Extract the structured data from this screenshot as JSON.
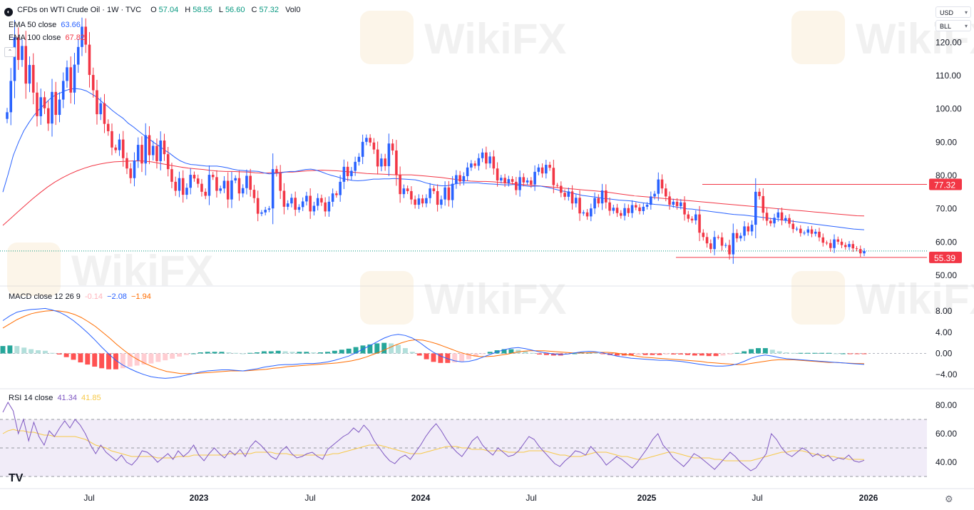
{
  "header": {
    "symbol": "CFDs on WTI Crude Oil · 1W · TVC",
    "ohlc": [
      {
        "label": "O",
        "value": "57.04"
      },
      {
        "label": "H",
        "value": "58.55"
      },
      {
        "label": "L",
        "value": "56.60"
      },
      {
        "label": "C",
        "value": "57.32"
      }
    ],
    "vol": "Vol0",
    "indicators": [
      {
        "label": "EMA 50 close",
        "value": "63.66",
        "color": "#2962ff"
      },
      {
        "label": "EMA 100 close",
        "value": "67.82",
        "color": "#f23645"
      }
    ]
  },
  "currency_selector": "USD",
  "unit_selector": "BLL",
  "macd": {
    "label": "MACD close 12 26 9",
    "values": [
      {
        "value": "-0.14",
        "color": "#ffb3bb"
      },
      {
        "value": "−2.08",
        "color": "#2962ff"
      },
      {
        "value": "−1.94",
        "color": "#ff6d00"
      }
    ]
  },
  "rsi": {
    "label": "RSI 14 close",
    "values": [
      {
        "value": "41.34",
        "color": "#7e57c2"
      },
      {
        "value": "41.85",
        "color": "#f7c948"
      }
    ]
  },
  "watermark": "WikiFX",
  "chart_data": {
    "type": "candlestick",
    "title": "CFDs on WTI Crude Oil · 1W · TVC",
    "price_axis": {
      "ticks": [
        "120.00",
        "110.00",
        "100.00",
        "90.00",
        "80.00",
        "70.00",
        "60.00",
        "50.00"
      ]
    },
    "time_axis": {
      "ticks": [
        "Jul",
        "2023",
        "Jul",
        "2024",
        "Jul",
        "2025",
        "Jul",
        "2026"
      ]
    },
    "price_labels": [
      {
        "value": "77.32",
        "color": "#f23645"
      },
      {
        "value": "55.39",
        "color": "#f23645"
      }
    ],
    "horizontal_lines": [
      77.32,
      55.39
    ],
    "last_close": 57.32,
    "close_series": [
      99.0,
      108.4,
      121.5,
      114.7,
      118.9,
      107.6,
      113.2,
      104.9,
      97.8,
      103.5,
      100.2,
      95.6,
      105.1,
      98.2,
      102.8,
      108.4,
      112.5,
      104.9,
      113.3,
      118.6,
      124.7,
      119.3,
      110.2,
      105.6,
      98.4,
      101.7,
      95.5,
      93.3,
      88.4,
      87.6,
      90.8,
      85.2,
      82.1,
      79.2,
      84.5,
      89.2,
      83.6,
      92.1,
      86.1,
      88.9,
      84.3,
      90.5,
      86.4,
      81.9,
      78.1,
      75.4,
      79.2,
      74.2,
      76.3,
      80.2,
      79.1,
      77.5,
      75.1,
      73.9,
      80.2,
      79.5,
      75.4,
      76.1,
      78.4,
      72.8,
      78.5,
      79.2,
      74.6,
      76.2,
      79.9,
      75.7,
      73.2,
      68.5,
      68.9,
      69.7,
      70.1,
      81.9,
      80.7,
      75.4,
      70.6,
      71.6,
      73.3,
      69.7,
      70.5,
      72.2,
      73.9,
      69.2,
      70.9,
      73.2,
      71.9,
      69.2,
      72.1,
      74.6,
      74.1,
      78.1,
      82.6,
      79.8,
      81.4,
      84.1,
      85.6,
      90.1,
      91.3,
      89.9,
      87.8,
      82.7,
      85.1,
      82.8,
      89.6,
      87.5,
      80.1,
      74.4,
      76.1,
      75.3,
      72.8,
      71.2,
      73.1,
      71.6,
      73.2,
      76.1,
      75.3,
      71.2,
      72.8,
      76.4,
      72.6,
      77.5,
      80.1,
      78.2,
      79.8,
      82.4,
      83.6,
      82.9,
      85.2,
      86.9,
      83.6,
      85.7,
      82.1,
      78.5,
      79.3,
      77.7,
      78.9,
      78.1,
      75.6,
      79.5,
      77.9,
      78.5,
      77.3,
      81.1,
      82.4,
      80.6,
      83.2,
      82.3,
      77.1,
      76.9,
      74.8,
      73.6,
      75.2,
      71.6,
      73.3,
      68.6,
      68.9,
      67.7,
      70.1,
      73.2,
      71.6,
      75.5,
      71.9,
      69.4,
      70.3,
      68.7,
      67.9,
      70.2,
      68.7,
      71.1,
      70.4,
      69.3,
      70.6,
      71.2,
      73.7,
      74.5,
      78.8,
      76.1,
      73.7,
      71.2,
      72.1,
      70.8,
      71.9,
      68.3,
      67.0,
      66.5,
      68.3,
      62.8,
      61.5,
      59.6,
      57.9,
      61.5,
      61.4,
      58.9,
      59.1,
      56.3,
      62.7,
      61.1,
      61.9,
      64.7,
      63.2,
      65.2,
      75.1,
      73.8,
      68.8,
      66.4,
      65.6,
      67.3,
      68.9,
      66.5,
      67.2,
      65.5,
      63.9,
      64.0,
      62.7,
      62.8,
      63.8,
      62.5,
      63.1,
      61.4,
      59.8,
      59.7,
      58.2,
      60.8,
      60.1,
      59.1,
      58.5,
      59.4,
      58.1,
      57.9,
      56.6,
      57.32
    ],
    "ema50_series": [
      75.0,
      80.3,
      86.0,
      90.0,
      93.4,
      95.9,
      98.1,
      99.9,
      101.4,
      103.0,
      104.1,
      104.8,
      105.5,
      106.0,
      106.1,
      105.9,
      105.4,
      104.5,
      103.5,
      102.1,
      100.9,
      99.5,
      98.3,
      97.2,
      95.7,
      94.6,
      93.3,
      92.1,
      91.0,
      89.8,
      88.8,
      87.6,
      86.6,
      85.4,
      84.4,
      83.7,
      83.3,
      83.2,
      83.0,
      82.8,
      82.8,
      82.8,
      82.6,
      82.3,
      81.9,
      81.6,
      81.5,
      81.3,
      81.3,
      81.2,
      80.8,
      80.5,
      80.6,
      80.7,
      81.0,
      81.2,
      81.2,
      81.5,
      81.8,
      81.9,
      81.6,
      81.1,
      80.5,
      80.0,
      79.6,
      79.1,
      78.8,
      78.5,
      78.4,
      78.5,
      78.7,
      78.9,
      78.9,
      79.0,
      79.0,
      79.1,
      79.0,
      78.9,
      78.8,
      78.7,
      78.3,
      77.8,
      77.4,
      77.1,
      76.9,
      76.9,
      77.2,
      77.6,
      77.8,
      77.8,
      77.8,
      77.8,
      77.6,
      77.5,
      77.4,
      77.3,
      77.2,
      77.2,
      77.3,
      77.0,
      76.9,
      76.7,
      76.8,
      76.8,
      76.5,
      76.2,
      75.8,
      75.4,
      75.1,
      74.7,
      74.4,
      74.0,
      73.8,
      73.6,
      73.4,
      73.1,
      73.0,
      72.8,
      72.6,
      72.5,
      72.4,
      72.2,
      71.9,
      71.7,
      71.5,
      71.3,
      71.2,
      71.0,
      70.8,
      70.5,
      70.3,
      70.0,
      69.9,
      69.7,
      69.5,
      69.3,
      69.1,
      68.9,
      68.7,
      68.5,
      68.3,
      68.2,
      68.1,
      67.9,
      67.7,
      67.5,
      67.3,
      67.1,
      66.9,
      66.7,
      66.5,
      66.3,
      66.1,
      65.9,
      65.7,
      65.5,
      65.3,
      65.1,
      64.9,
      64.7,
      64.5,
      64.3,
      64.1,
      63.9,
      63.8,
      63.7
    ],
    "ema100_series": [
      65.0,
      67.0,
      69.0,
      71.0,
      73.0,
      74.8,
      76.5,
      78.0,
      79.3,
      80.4,
      81.4,
      82.2,
      82.9,
      83.4,
      83.8,
      84.1,
      84.2,
      84.3,
      84.4,
      84.3,
      84.1,
      83.7,
      83.3,
      82.9,
      82.5,
      82.2,
      82.0,
      81.8,
      81.5,
      81.3,
      81.2,
      81.2,
      81.1,
      81.0,
      80.8,
      80.7,
      80.8,
      80.9,
      81.0,
      81.0,
      81.2,
      81.4,
      81.5,
      81.6,
      81.5,
      81.4,
      81.2,
      81.0,
      80.8,
      80.6,
      80.5,
      80.4,
      80.3,
      80.2,
      80.2,
      80.2,
      80.0,
      79.8,
      79.6,
      79.4,
      79.1,
      78.8,
      78.5,
      78.3,
      78.2,
      78.2,
      78.1,
      77.9,
      77.7,
      77.5,
      77.3,
      77.1,
      76.9,
      76.7,
      76.5,
      76.3,
      76.1,
      75.9,
      75.7,
      75.5,
      75.3,
      75.1,
      74.8,
      74.5,
      74.2,
      73.9,
      73.7,
      73.5,
      73.3,
      73.1,
      72.9,
      72.7,
      72.5,
      72.3,
      72.1,
      71.9,
      71.7,
      71.5,
      71.3,
      71.1,
      70.9,
      70.7,
      70.5,
      70.3,
      70.1,
      69.9,
      69.7,
      69.5,
      69.3,
      69.1,
      68.9,
      68.7,
      68.5,
      68.3,
      68.1,
      67.9,
      67.82
    ],
    "macd_series": [
      6.2,
      7.1,
      7.8,
      8.1,
      8.3,
      8.4,
      8.5,
      8.2,
      7.8,
      7.1,
      6.2,
      5.1,
      3.9,
      2.6,
      1.2,
      -0.1,
      -1.3,
      -2.2,
      -2.9,
      -3.5,
      -4.0,
      -4.4,
      -4.6,
      -4.7,
      -4.6,
      -4.4,
      -4.1,
      -3.8,
      -3.5,
      -3.3,
      -3.2,
      -3.1,
      -3.1,
      -3.2,
      -3.3,
      -3.1,
      -2.9,
      -2.6,
      -2.4,
      -2.2,
      -2.1,
      -2.1,
      -2.0,
      -1.9,
      -1.9,
      -1.8,
      -1.6,
      -1.3,
      -0.9,
      -0.5,
      0.1,
      0.8,
      1.5,
      2.2,
      2.9,
      3.4,
      3.6,
      3.4,
      2.9,
      2.1,
      1.1,
      0.2,
      -0.5,
      -1.0,
      -1.4,
      -1.6,
      -1.5,
      -1.2,
      -0.7,
      -0.2,
      0.3,
      0.7,
      1.0,
      1.1,
      0.9,
      0.6,
      0.3,
      0.1,
      -0.1,
      -0.2,
      -0.1,
      0.1,
      0.3,
      0.4,
      0.3,
      0.1,
      -0.2,
      -0.5,
      -0.7,
      -0.9,
      -1.0,
      -1.1,
      -1.2,
      -1.3,
      -1.3,
      -1.4,
      -1.5,
      -1.7,
      -1.9,
      -2.1,
      -2.3,
      -2.4,
      -2.4,
      -2.3,
      -2.0,
      -1.5,
      -0.9,
      -0.5,
      -0.3,
      -0.5,
      -0.8,
      -1.0,
      -1.1,
      -1.2,
      -1.3,
      -1.4,
      -1.5,
      -1.6,
      -1.7,
      -1.8,
      -1.9,
      -2.0,
      -2.08
    ],
    "macd_signal_series": [
      4.8,
      5.6,
      6.4,
      7.0,
      7.5,
      7.8,
      8.0,
      8.1,
      8.0,
      7.8,
      7.4,
      6.8,
      6.0,
      5.1,
      4.0,
      2.9,
      1.7,
      0.6,
      -0.4,
      -1.2,
      -1.9,
      -2.5,
      -3.0,
      -3.4,
      -3.6,
      -3.8,
      -3.8,
      -3.8,
      -3.7,
      -3.6,
      -3.5,
      -3.4,
      -3.3,
      -3.3,
      -3.3,
      -3.2,
      -3.1,
      -3.0,
      -2.8,
      -2.7,
      -2.5,
      -2.4,
      -2.3,
      -2.2,
      -2.1,
      -2.0,
      -1.9,
      -1.8,
      -1.6,
      -1.4,
      -1.1,
      -0.7,
      -0.2,
      0.3,
      0.9,
      1.5,
      2.0,
      2.4,
      2.6,
      2.5,
      2.2,
      1.8,
      1.3,
      0.8,
      0.3,
      -0.1,
      -0.4,
      -0.6,
      -0.6,
      -0.5,
      -0.3,
      -0.1,
      0.2,
      0.4,
      0.5,
      0.5,
      0.5,
      0.4,
      0.3,
      0.2,
      0.1,
      0.1,
      0.1,
      0.2,
      0.2,
      0.2,
      0.1,
      -0.1,
      -0.3,
      -0.5,
      -0.7,
      -0.8,
      -0.9,
      -1.0,
      -1.1,
      -1.2,
      -1.3,
      -1.4,
      -1.5,
      -1.7,
      -1.8,
      -1.9,
      -2.0,
      -2.1,
      -2.1,
      -1.9,
      -1.7,
      -1.5,
      -1.3,
      -1.2,
      -1.2,
      -1.2,
      -1.3,
      -1.4,
      -1.5,
      -1.6,
      -1.7,
      -1.7,
      -1.8,
      -1.85,
      -1.9,
      -1.94
    ],
    "macd_histogram_series": [
      1.4,
      1.5,
      1.4,
      1.1,
      0.8,
      0.6,
      0.5,
      0.1,
      -0.2,
      -0.7,
      -1.2,
      -1.7,
      -2.1,
      -2.5,
      -2.8,
      -3.0,
      -3.0,
      -2.8,
      -2.5,
      -2.3,
      -2.1,
      -1.9,
      -1.6,
      -1.3,
      -1.0,
      -0.6,
      -0.3,
      0.0,
      0.2,
      0.3,
      0.3,
      0.3,
      0.2,
      0.1,
      0.0,
      0.1,
      0.2,
      0.4,
      0.4,
      0.5,
      0.4,
      0.3,
      0.3,
      0.3,
      0.2,
      0.2,
      0.3,
      0.5,
      0.7,
      0.9,
      1.2,
      1.5,
      1.7,
      1.9,
      2.0,
      1.9,
      1.6,
      1.0,
      0.3,
      -0.4,
      -1.1,
      -1.6,
      -1.8,
      -1.8,
      -1.7,
      -1.5,
      -1.1,
      -0.6,
      -0.1,
      0.3,
      0.6,
      0.8,
      0.8,
      0.7,
      0.4,
      0.1,
      -0.2,
      -0.3,
      -0.4,
      -0.4,
      -0.2,
      0.0,
      0.2,
      0.2,
      0.1,
      -0.1,
      -0.3,
      -0.4,
      -0.4,
      -0.4,
      -0.3,
      -0.3,
      -0.3,
      -0.3,
      -0.2,
      -0.2,
      -0.2,
      -0.3,
      -0.4,
      -0.4,
      -0.5,
      -0.5,
      -0.4,
      -0.2,
      0.1,
      0.4,
      0.8,
      1.0,
      1.0,
      0.7,
      0.4,
      0.2,
      0.1,
      0.1,
      0.1,
      0.1,
      0.1,
      0.1,
      0.0,
      0.0,
      -0.1,
      -0.1,
      -0.14
    ],
    "macd_axis": {
      "ticks": [
        "8.00",
        "4.00",
        "0.00",
        "−4.00"
      ]
    },
    "rsi_series": [
      75,
      82,
      76,
      60,
      70,
      55,
      68,
      58,
      52,
      62,
      58,
      64,
      69,
      64,
      70,
      66,
      60,
      52,
      46,
      52,
      47,
      44,
      41,
      45,
      40,
      38,
      42,
      48,
      47,
      44,
      40,
      43,
      46,
      42,
      48,
      44,
      47,
      52,
      45,
      41,
      46,
      50,
      46,
      43,
      48,
      45,
      49,
      44,
      51,
      55,
      52,
      48,
      44,
      42,
      48,
      51,
      46,
      43,
      44,
      46,
      47,
      44,
      42,
      49,
      52,
      55,
      58,
      60,
      64,
      61,
      66,
      62,
      55,
      50,
      45,
      41,
      39,
      43,
      45,
      42,
      47,
      52,
      58,
      63,
      67,
      62,
      56,
      51,
      47,
      44,
      49,
      55,
      58,
      52,
      48,
      45,
      50,
      47,
      44,
      45,
      48,
      53,
      58,
      56,
      51,
      47,
      43,
      39,
      37,
      41,
      44,
      48,
      47,
      45,
      51,
      47,
      43,
      38,
      41,
      44,
      42,
      39,
      36,
      40,
      45,
      50,
      56,
      60,
      52,
      48,
      43,
      40,
      37,
      41,
      46,
      44,
      41,
      38,
      35,
      39,
      43,
      47,
      44,
      40,
      37,
      34,
      36,
      41,
      46,
      60,
      56,
      50,
      46,
      44,
      47,
      50,
      48,
      44,
      46,
      43,
      45,
      41,
      43,
      42,
      45,
      41,
      40,
      41.34
    ],
    "rsi_ma_series": [
      60,
      62,
      63,
      62,
      62,
      61,
      61,
      60,
      59,
      59,
      58,
      58,
      58,
      58,
      58,
      57,
      56,
      54,
      52,
      51,
      50,
      48,
      47,
      46,
      45,
      44,
      44,
      44,
      44,
      44,
      43,
      43,
      43,
      43,
      44,
      44,
      44,
      45,
      45,
      45,
      45,
      45,
      45,
      45,
      46,
      46,
      46,
      46,
      46,
      47,
      47,
      47,
      47,
      46,
      46,
      46,
      45,
      45,
      45,
      45,
      45,
      45,
      45,
      45,
      46,
      46,
      47,
      48,
      49,
      50,
      51,
      52,
      52,
      52,
      51,
      50,
      49,
      48,
      47,
      46,
      46,
      46,
      47,
      48,
      49,
      50,
      51,
      51,
      51,
      50,
      50,
      49,
      49,
      49,
      48,
      48,
      48,
      48,
      47,
      47,
      47,
      47,
      48,
      48,
      48,
      48,
      47,
      46,
      45,
      45,
      44,
      44,
      44,
      45,
      46,
      47,
      47,
      47,
      46,
      45,
      44,
      44,
      43,
      42,
      42,
      43,
      44,
      45,
      46,
      47,
      47,
      46,
      45,
      44,
      43,
      43,
      43,
      43,
      42,
      42,
      41,
      41,
      41,
      41,
      41,
      41,
      42,
      43,
      44,
      45,
      46,
      47,
      47,
      48,
      48,
      48,
      47,
      46,
      45,
      45,
      44,
      44,
      43,
      43,
      42,
      42,
      42,
      41.85
    ],
    "rsi_axis": {
      "ticks": [
        "80.00",
        "60.00",
        "40.00"
      ]
    },
    "rsi_bands": [
      70,
      50,
      30
    ],
    "legend_position": "top-left"
  }
}
